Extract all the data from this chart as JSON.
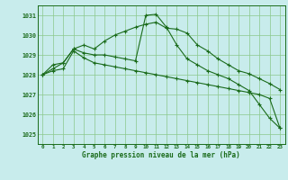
{
  "title": "Graphe pression niveau de la mer (hPa)",
  "bg_color": "#c8ecec",
  "grid_color": "#8bc88b",
  "line_color": "#1a6b1a",
  "xlim": [
    -0.5,
    23.5
  ],
  "ylim": [
    1024.5,
    1031.5
  ],
  "yticks": [
    1025,
    1026,
    1027,
    1028,
    1029,
    1030,
    1031
  ],
  "xticks": [
    0,
    1,
    2,
    3,
    4,
    5,
    6,
    7,
    8,
    9,
    10,
    11,
    12,
    13,
    14,
    15,
    16,
    17,
    18,
    19,
    20,
    21,
    22,
    23
  ],
  "series": [
    {
      "x": [
        0,
        1,
        2,
        3,
        4,
        5,
        6,
        7,
        8,
        9,
        10,
        11,
        12,
        13,
        14,
        15,
        16,
        17,
        18,
        19,
        20,
        21,
        22,
        23
      ],
      "y": [
        1028.0,
        1028.5,
        1028.6,
        1029.3,
        1029.5,
        1029.3,
        1029.7,
        1030.0,
        1030.2,
        1030.4,
        1030.55,
        1030.65,
        1030.35,
        1030.3,
        1030.1,
        1029.5,
        1029.2,
        1028.8,
        1028.5,
        1028.2,
        1028.05,
        1027.8,
        1027.55,
        1027.25
      ]
    },
    {
      "x": [
        0,
        1,
        2,
        3,
        4,
        5,
        6,
        7,
        8,
        9,
        10,
        11,
        12,
        13,
        14,
        15,
        16,
        17,
        18,
        19,
        20,
        21,
        22,
        23
      ],
      "y": [
        1028.0,
        1028.3,
        1028.6,
        1029.3,
        1029.1,
        1029.0,
        1029.0,
        1028.9,
        1028.8,
        1028.7,
        1031.0,
        1031.05,
        1030.4,
        1029.5,
        1028.8,
        1028.5,
        1028.2,
        1028.0,
        1027.8,
        1027.5,
        1027.2,
        1026.5,
        1025.8,
        1025.3
      ]
    },
    {
      "x": [
        0,
        1,
        2,
        3,
        4,
        5,
        6,
        7,
        8,
        9,
        10,
        11,
        12,
        13,
        14,
        15,
        16,
        17,
        18,
        19,
        20,
        21,
        22,
        23
      ],
      "y": [
        1028.0,
        1028.2,
        1028.3,
        1029.2,
        1028.85,
        1028.6,
        1028.5,
        1028.4,
        1028.3,
        1028.2,
        1028.1,
        1028.0,
        1027.9,
        1027.8,
        1027.7,
        1027.6,
        1027.5,
        1027.4,
        1027.3,
        1027.2,
        1027.1,
        1027.0,
        1026.8,
        1025.3
      ]
    }
  ]
}
